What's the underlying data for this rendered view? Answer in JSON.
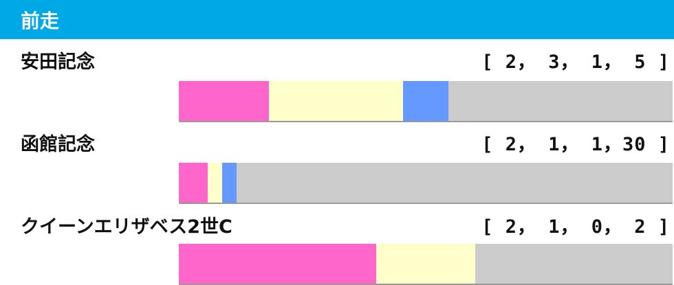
{
  "header": {
    "title": "前走"
  },
  "colors": {
    "first": "#ff66cc",
    "second": "#ffffcc",
    "third": "#6699ff",
    "other": "#cccccc"
  },
  "chart_data": {
    "type": "bar",
    "stacked": true,
    "orientation": "horizontal",
    "categories": [
      "安田記念",
      "函館記念",
      "クイーンエリザベス2世C"
    ],
    "series": [
      {
        "values": [
          2,
          2,
          2
        ]
      },
      {
        "values": [
          3,
          1,
          1
        ]
      },
      {
        "values": [
          1,
          1,
          0
        ]
      },
      {
        "values": [
          5,
          30,
          2
        ]
      }
    ],
    "records": [
      "[ 2， 3， 1， 5 ]",
      "[ 2， 1， 1，30 ]",
      "[ 2， 1， 0， 2 ]"
    ]
  }
}
